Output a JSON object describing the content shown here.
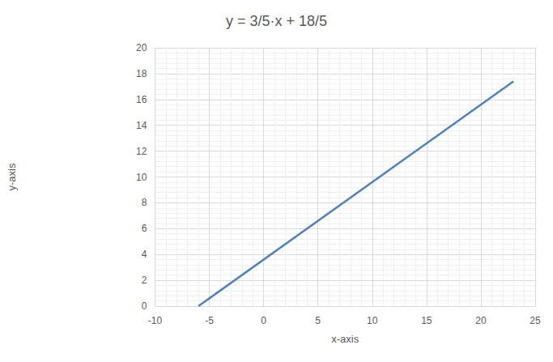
{
  "chart_data": {
    "type": "line",
    "title": "y = 3/5·x + 18/5",
    "x_label": "x-axis",
    "y_label": "y-axis",
    "x": [
      -6,
      23
    ],
    "values": [
      0,
      17.4
    ],
    "color": "#4f81bd",
    "xlim": [
      -10,
      25
    ],
    "xticks": [
      -10,
      -5,
      0,
      5,
      10,
      15,
      20,
      25
    ],
    "ylim": [
      0,
      20
    ],
    "yticks": [
      0,
      2,
      4,
      6,
      8,
      10,
      12,
      14,
      16,
      18,
      20
    ],
    "grid": true
  }
}
